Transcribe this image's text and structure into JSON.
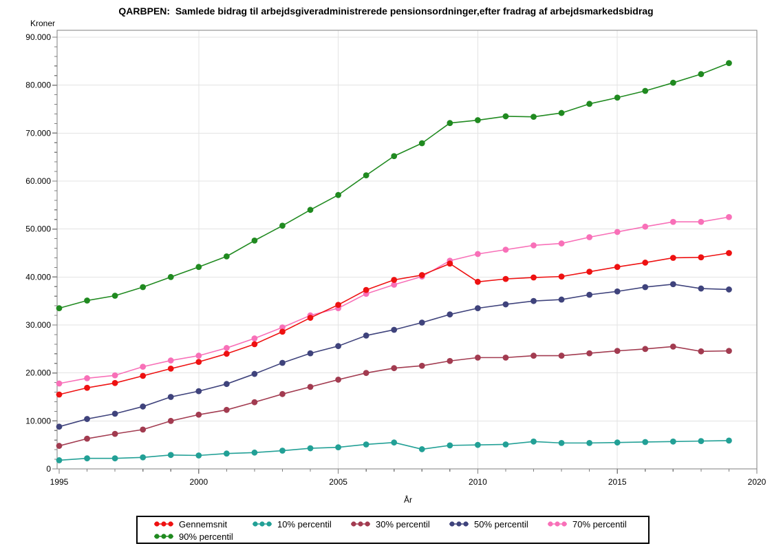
{
  "page": {
    "title": "QARBPEN:  Samlede bidrag til arbejdsgiveradministrerede pensionsordninger,efter fradrag af arbejdsmarkedsbidrag"
  },
  "chart_data": {
    "type": "line",
    "title": "QARBPEN:  Samlede bidrag til arbejdsgiveradministrerede pensionsordninger,efter fradrag af arbejdsmarkedsbidrag",
    "xlabel": "År",
    "ylabel": "Kroner",
    "xlim": [
      1995,
      2020
    ],
    "ylim": [
      0,
      90000
    ],
    "grid": true,
    "legend_position": "bottom",
    "x": [
      1995,
      1996,
      1997,
      1998,
      1999,
      2000,
      2001,
      2002,
      2003,
      2004,
      2005,
      2006,
      2007,
      2008,
      2009,
      2010,
      2011,
      2012,
      2013,
      2014,
      2015,
      2016,
      2017,
      2018,
      2019
    ],
    "x_ticks": [
      {
        "v": 1995,
        "label": "1995"
      },
      {
        "v": 2000,
        "label": "2000"
      },
      {
        "v": 2005,
        "label": "2005"
      },
      {
        "v": 2010,
        "label": "2010"
      },
      {
        "v": 2015,
        "label": "2015"
      },
      {
        "v": 2020,
        "label": "2020"
      }
    ],
    "x_minor_step": 1,
    "y_ticks": [
      {
        "v": 0,
        "label": "0"
      },
      {
        "v": 10000,
        "label": "10.000"
      },
      {
        "v": 20000,
        "label": "20.000"
      },
      {
        "v": 30000,
        "label": "30.000"
      },
      {
        "v": 40000,
        "label": "40.000"
      },
      {
        "v": 50000,
        "label": "50.000"
      },
      {
        "v": 60000,
        "label": "60.000"
      },
      {
        "v": 70000,
        "label": "70.000"
      },
      {
        "v": 80000,
        "label": "80.000"
      },
      {
        "v": 90000,
        "label": "90.000"
      }
    ],
    "y_minor_step": 2000,
    "series": [
      {
        "name": "Gennemsnit",
        "color": "#EE1111",
        "values": [
          15500,
          16900,
          17900,
          19400,
          20900,
          22300,
          24000,
          26000,
          28600,
          31500,
          34200,
          37300,
          39400,
          40400,
          42800,
          39000,
          39600,
          39900,
          40100,
          41100,
          42100,
          43000,
          44000,
          44100,
          45000
        ]
      },
      {
        "name": "10% percentil",
        "color": "#22A096",
        "values": [
          1800,
          2200,
          2200,
          2400,
          2900,
          2800,
          3200,
          3400,
          3800,
          4300,
          4500,
          5100,
          5500,
          4100,
          4900,
          5000,
          5100,
          5700,
          5400,
          5400,
          5500,
          5600,
          5700,
          5800,
          5900
        ]
      },
      {
        "name": "30% percentil",
        "color": "#A23B50",
        "values": [
          4800,
          6300,
          7300,
          8200,
          10000,
          11300,
          12300,
          13900,
          15600,
          17100,
          18600,
          20000,
          21000,
          21500,
          22500,
          23200,
          23200,
          23600,
          23600,
          24100,
          24600,
          25000,
          25500,
          24500,
          24600
        ]
      },
      {
        "name": "50% percentil",
        "color": "#3F437C",
        "values": [
          8800,
          10400,
          11500,
          13000,
          15000,
          16200,
          17700,
          19800,
          22100,
          24100,
          25600,
          27800,
          29000,
          30500,
          32200,
          33500,
          34300,
          35000,
          35300,
          36300,
          37000,
          37900,
          38500,
          37600,
          37400
        ]
      },
      {
        "name": "70% percentil",
        "color": "#F870B8",
        "values": [
          17800,
          18900,
          19500,
          21300,
          22600,
          23600,
          25200,
          27200,
          29500,
          32000,
          33500,
          36500,
          38400,
          40100,
          43400,
          44800,
          45700,
          46600,
          47000,
          48300,
          49400,
          50500,
          51500,
          51500,
          52500
        ]
      },
      {
        "name": "90% percentil",
        "color": "#208A20",
        "values": [
          33500,
          35100,
          36100,
          37900,
          40000,
          42100,
          44300,
          47600,
          50700,
          54000,
          57100,
          61200,
          65200,
          67900,
          72100,
          72700,
          73500,
          73400,
          74200,
          76100,
          77400,
          78800,
          80500,
          82300,
          84600
        ]
      }
    ]
  }
}
